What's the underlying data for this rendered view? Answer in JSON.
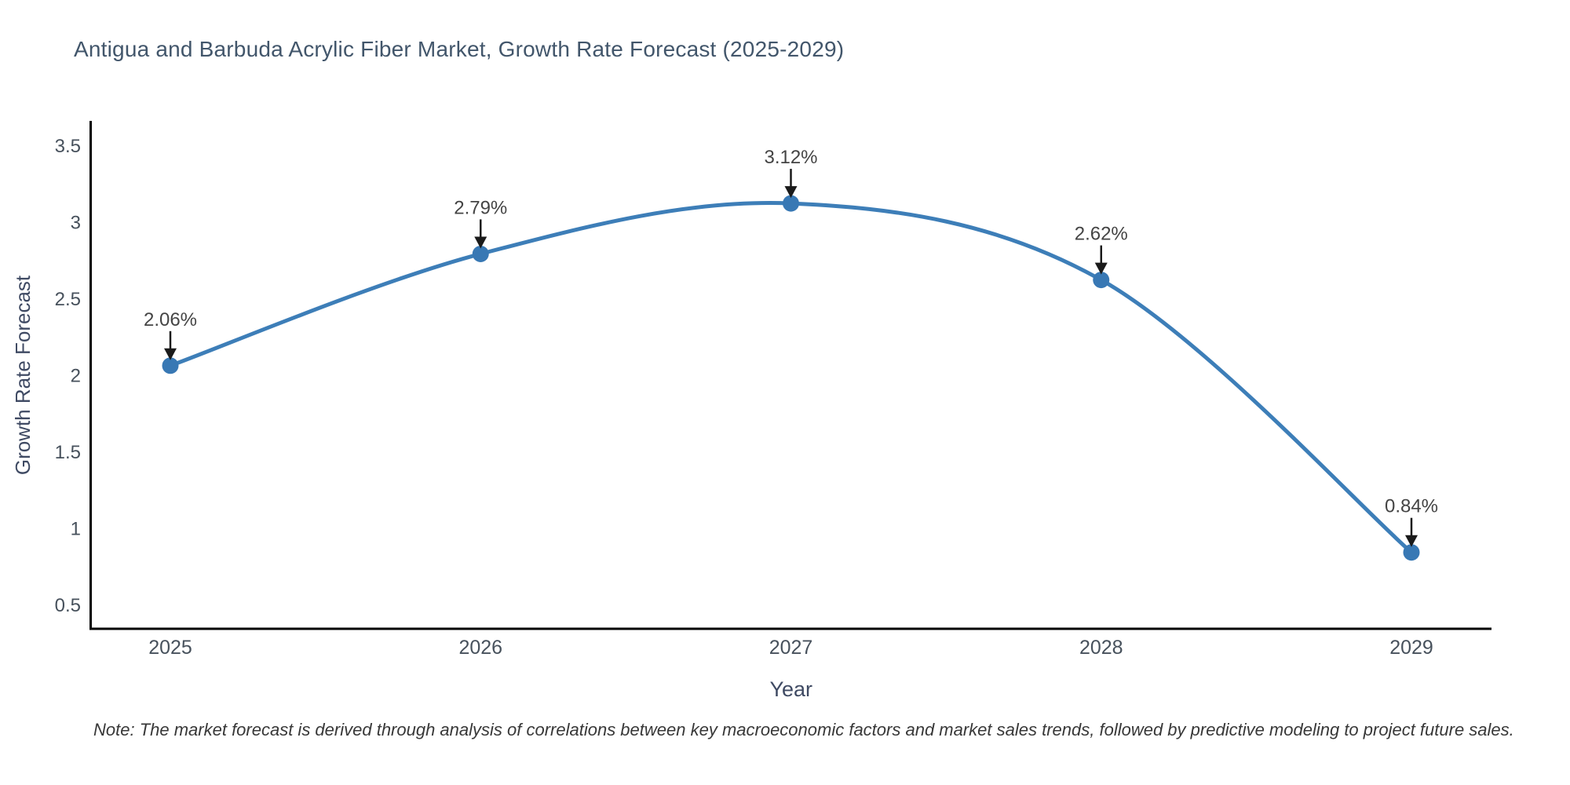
{
  "chart_data": {
    "type": "line",
    "title": "Antigua and Barbuda Acrylic Fiber Market, Growth Rate Forecast (2025-2029)",
    "xlabel": "Year",
    "ylabel": "Growth Rate Forecast",
    "categories": [
      "2025",
      "2026",
      "2027",
      "2028",
      "2029"
    ],
    "values": [
      2.06,
      2.79,
      3.12,
      2.62,
      0.84
    ],
    "point_labels": [
      "2.06%",
      "2.79%",
      "3.12%",
      "2.62%",
      "0.84%"
    ],
    "yticks": [
      0.5,
      1,
      1.5,
      2,
      2.5,
      3,
      3.5
    ],
    "ylim": [
      0.34,
      3.66
    ],
    "grid": false,
    "legend": false,
    "line_shape": "spline",
    "note": "Note: The market forecast is derived through analysis of correlations between key macroeconomic factors and market sales trends, followed by predictive modeling to project future sales.",
    "colors": {
      "line": "#3d7eb8",
      "marker": "#3878b4",
      "axis": "#000000",
      "tick_label": "#47515c",
      "axis_title": "#3f4a63",
      "title": "#42566b",
      "annotation": "#444444",
      "arrow": "#1a1a1a",
      "note": "#383838"
    }
  }
}
